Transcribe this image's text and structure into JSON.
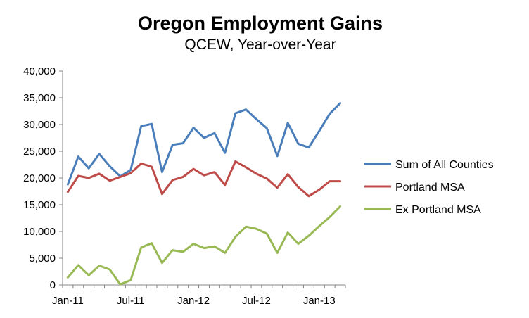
{
  "chart_data": {
    "type": "line",
    "title": "Oregon Employment Gains",
    "subtitle": "QCEW, Year-over-Year",
    "xlabel": "",
    "ylabel": "",
    "ylim": [
      0,
      40000
    ],
    "yticks": [
      0,
      5000,
      10000,
      15000,
      20000,
      25000,
      30000,
      35000,
      40000
    ],
    "ytick_labels": [
      "0",
      "5,000",
      "10,000",
      "15,000",
      "20,000",
      "25,000",
      "30,000",
      "35,000",
      "40,000"
    ],
    "x": [
      "Jan-11",
      "Feb-11",
      "Mar-11",
      "Apr-11",
      "May-11",
      "Jun-11",
      "Jul-11",
      "Aug-11",
      "Sep-11",
      "Oct-11",
      "Nov-11",
      "Dec-11",
      "Jan-12",
      "Feb-12",
      "Mar-12",
      "Apr-12",
      "May-12",
      "Jun-12",
      "Jul-12",
      "Aug-12",
      "Sep-12",
      "Oct-12",
      "Nov-12",
      "Dec-12",
      "Jan-13",
      "Feb-13",
      "Mar-13"
    ],
    "xtick_labels": [
      "Jan-11",
      "Jul-11",
      "Jan-12",
      "Jul-12",
      "Jan-13"
    ],
    "xtick_index": [
      0,
      6,
      12,
      18,
      24
    ],
    "grid": "none",
    "legend_position": "right",
    "series": [
      {
        "name": "Sum of All Counties",
        "color": "#4a7ebb",
        "values": [
          18800,
          24000,
          21800,
          24500,
          22200,
          20300,
          21500,
          29700,
          30100,
          21100,
          26200,
          26500,
          29400,
          27500,
          28400,
          24700,
          32100,
          32800,
          31000,
          29300,
          24100,
          30300,
          26400,
          25700,
          28800,
          32000,
          34000
        ]
      },
      {
        "name": "Portland MSA",
        "color": "#be4b48",
        "values": [
          17400,
          20400,
          20000,
          20800,
          19500,
          20200,
          20900,
          22700,
          22100,
          17000,
          19600,
          20200,
          21700,
          20500,
          21100,
          18700,
          23100,
          22000,
          20800,
          19900,
          18200,
          20700,
          18300,
          16600,
          17800,
          19400,
          19400
        ]
      },
      {
        "name": "Ex Portland MSA",
        "color": "#98b954",
        "values": [
          1400,
          3700,
          1800,
          3600,
          2900,
          100,
          900,
          7000,
          7800,
          4100,
          6500,
          6200,
          7700,
          6900,
          7200,
          6000,
          9000,
          10900,
          10500,
          9600,
          6000,
          9800,
          7700,
          9200,
          11000,
          12700,
          14700
        ]
      }
    ]
  }
}
